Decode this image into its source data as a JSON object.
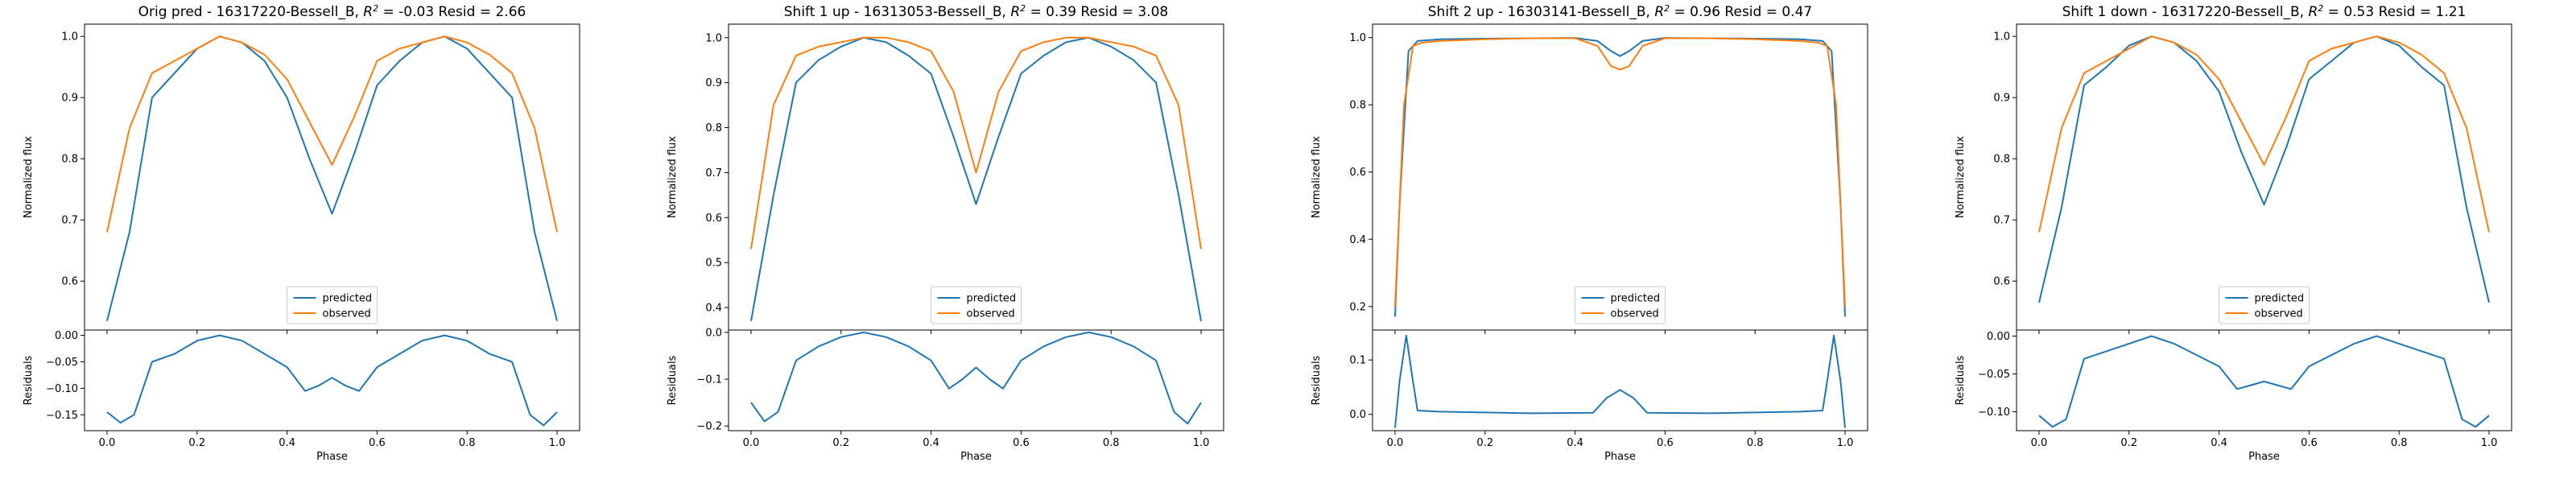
{
  "colors": {
    "predicted": "#1f77b4",
    "observed": "#ff7f0e",
    "axes": "#000000",
    "background": "#ffffff"
  },
  "labels": {
    "top_ylabel": "Normalized flux",
    "bottom_ylabel": "Residuals",
    "xlabel": "Phase"
  },
  "legend_position": "lower center",
  "chart_data": [
    {
      "type": "line",
      "title": "Orig pred - 16317220-Bessell_B, R² = -0.03 Resid = 2.66",
      "title_parts": {
        "pre": "Orig pred - 16317220-Bessell_B, ",
        "r": "R",
        "sup": "2",
        "post": " = -0.03 Resid = 2.66"
      },
      "xlabel": "Phase",
      "xlim": [
        -0.05,
        1.05
      ],
      "xticks": [
        0.0,
        0.2,
        0.4,
        0.6,
        0.8,
        1.0
      ],
      "xtick_labels": [
        "0.0",
        "0.2",
        "0.4",
        "0.6",
        "0.8",
        "1.0"
      ],
      "flux": {
        "ylabel": "Normalized flux",
        "ylim": [
          0.52,
          1.02
        ],
        "yticks": [
          0.6,
          0.7,
          0.8,
          0.9,
          1.0
        ],
        "ytick_labels": [
          "0.6",
          "0.7",
          "0.8",
          "0.9",
          "1.0"
        ],
        "series": [
          {
            "name": "predicted",
            "color": "#1f77b4",
            "x": [
              0.0,
              0.05,
              0.1,
              0.15,
              0.2,
              0.25,
              0.3,
              0.35,
              0.4,
              0.45,
              0.5,
              0.55,
              0.6,
              0.65,
              0.7,
              0.75,
              0.8,
              0.85,
              0.9,
              0.95,
              1.0
            ],
            "y": [
              0.535,
              0.68,
              0.9,
              0.94,
              0.98,
              1.0,
              0.99,
              0.96,
              0.9,
              0.8,
              0.71,
              0.81,
              0.92,
              0.96,
              0.99,
              1.0,
              0.98,
              0.94,
              0.9,
              0.68,
              0.535
            ]
          },
          {
            "name": "observed",
            "color": "#ff7f0e",
            "x": [
              0.0,
              0.05,
              0.1,
              0.15,
              0.2,
              0.25,
              0.3,
              0.35,
              0.4,
              0.45,
              0.5,
              0.55,
              0.6,
              0.65,
              0.7,
              0.75,
              0.8,
              0.85,
              0.9,
              0.95,
              1.0
            ],
            "y": [
              0.68,
              0.85,
              0.94,
              0.96,
              0.98,
              1.0,
              0.99,
              0.97,
              0.93,
              0.86,
              0.79,
              0.87,
              0.96,
              0.98,
              0.99,
              1.0,
              0.99,
              0.97,
              0.94,
              0.85,
              0.68
            ]
          }
        ],
        "legend": [
          "predicted",
          "observed"
        ]
      },
      "residuals": {
        "ylabel": "Residuals",
        "ylim": [
          -0.18,
          0.01
        ],
        "yticks": [
          0.0,
          -0.05,
          -0.1,
          -0.15
        ],
        "ytick_labels": [
          "0.00",
          "−0.05",
          "−0.10",
          "−0.15"
        ],
        "series": [
          {
            "name": "residual",
            "color": "#1f77b4",
            "x": [
              0.0,
              0.03,
              0.06,
              0.1,
              0.15,
              0.2,
              0.25,
              0.3,
              0.35,
              0.4,
              0.44,
              0.47,
              0.5,
              0.53,
              0.56,
              0.6,
              0.65,
              0.7,
              0.75,
              0.8,
              0.85,
              0.9,
              0.94,
              0.97,
              1.0
            ],
            "y": [
              -0.145,
              -0.165,
              -0.15,
              -0.05,
              -0.035,
              -0.01,
              0.0,
              -0.01,
              -0.035,
              -0.06,
              -0.105,
              -0.095,
              -0.08,
              -0.095,
              -0.105,
              -0.06,
              -0.035,
              -0.01,
              0.0,
              -0.01,
              -0.035,
              -0.05,
              -0.15,
              -0.17,
              -0.145
            ]
          }
        ]
      }
    },
    {
      "type": "line",
      "title": "Shift 1 up - 16313053-Bessell_B, R² = 0.39 Resid = 3.08",
      "title_parts": {
        "pre": "Shift 1 up - 16313053-Bessell_B, ",
        "r": "R",
        "sup": "2",
        "post": " = 0.39 Resid = 3.08"
      },
      "xlabel": "Phase",
      "xlim": [
        -0.05,
        1.05
      ],
      "xticks": [
        0.0,
        0.2,
        0.4,
        0.6,
        0.8,
        1.0
      ],
      "xtick_labels": [
        "0.0",
        "0.2",
        "0.4",
        "0.6",
        "0.8",
        "1.0"
      ],
      "flux": {
        "ylabel": "Normalized flux",
        "ylim": [
          0.35,
          1.03
        ],
        "yticks": [
          0.4,
          0.5,
          0.6,
          0.7,
          0.8,
          0.9,
          1.0
        ],
        "ytick_labels": [
          "0.4",
          "0.5",
          "0.6",
          "0.7",
          "0.8",
          "0.9",
          "1.0"
        ],
        "series": [
          {
            "name": "predicted",
            "color": "#1f77b4",
            "x": [
              0.0,
              0.05,
              0.1,
              0.15,
              0.2,
              0.25,
              0.3,
              0.35,
              0.4,
              0.45,
              0.5,
              0.55,
              0.6,
              0.65,
              0.7,
              0.75,
              0.8,
              0.85,
              0.9,
              0.95,
              1.0
            ],
            "y": [
              0.37,
              0.65,
              0.9,
              0.95,
              0.98,
              1.0,
              0.99,
              0.96,
              0.92,
              0.78,
              0.63,
              0.78,
              0.92,
              0.96,
              0.99,
              1.0,
              0.98,
              0.95,
              0.9,
              0.65,
              0.37
            ]
          },
          {
            "name": "observed",
            "color": "#ff7f0e",
            "x": [
              0.0,
              0.05,
              0.1,
              0.15,
              0.2,
              0.25,
              0.3,
              0.35,
              0.4,
              0.45,
              0.5,
              0.55,
              0.6,
              0.65,
              0.7,
              0.75,
              0.8,
              0.85,
              0.9,
              0.95,
              1.0
            ],
            "y": [
              0.53,
              0.85,
              0.96,
              0.98,
              0.99,
              1.0,
              1.0,
              0.99,
              0.97,
              0.88,
              0.7,
              0.88,
              0.97,
              0.99,
              1.0,
              1.0,
              0.99,
              0.98,
              0.96,
              0.85,
              0.53
            ]
          }
        ],
        "legend": [
          "predicted",
          "observed"
        ]
      },
      "residuals": {
        "ylabel": "Residuals",
        "ylim": [
          -0.21,
          0.005
        ],
        "yticks": [
          0.0,
          -0.1,
          -0.2
        ],
        "ytick_labels": [
          "0.0",
          "−0.1",
          "−0.2"
        ],
        "series": [
          {
            "name": "residual",
            "color": "#1f77b4",
            "x": [
              0.0,
              0.03,
              0.06,
              0.1,
              0.15,
              0.2,
              0.25,
              0.3,
              0.35,
              0.4,
              0.44,
              0.47,
              0.5,
              0.53,
              0.56,
              0.6,
              0.65,
              0.7,
              0.75,
              0.8,
              0.85,
              0.9,
              0.94,
              0.97,
              1.0
            ],
            "y": [
              -0.15,
              -0.19,
              -0.17,
              -0.06,
              -0.03,
              -0.01,
              0.0,
              -0.01,
              -0.03,
              -0.06,
              -0.12,
              -0.1,
              -0.075,
              -0.1,
              -0.12,
              -0.06,
              -0.03,
              -0.01,
              0.0,
              -0.01,
              -0.03,
              -0.06,
              -0.17,
              -0.195,
              -0.15
            ]
          }
        ]
      }
    },
    {
      "type": "line",
      "title": "Shift 2 up - 16303141-Bessell_B, R² = 0.96 Resid = 0.47",
      "title_parts": {
        "pre": "Shift 2 up - 16303141-Bessell_B, ",
        "r": "R",
        "sup": "2",
        "post": " = 0.96 Resid = 0.47"
      },
      "xlabel": "Phase",
      "xlim": [
        -0.05,
        1.05
      ],
      "xticks": [
        0.0,
        0.2,
        0.4,
        0.6,
        0.8,
        1.0
      ],
      "xtick_labels": [
        "0.0",
        "0.2",
        "0.4",
        "0.6",
        "0.8",
        "1.0"
      ],
      "flux": {
        "ylabel": "Normalized flux",
        "ylim": [
          0.13,
          1.04
        ],
        "yticks": [
          0.2,
          0.4,
          0.6,
          0.8,
          1.0
        ],
        "ytick_labels": [
          "0.2",
          "0.4",
          "0.6",
          "0.8",
          "1.0"
        ],
        "series": [
          {
            "name": "predicted",
            "color": "#1f77b4",
            "x": [
              0.0,
              0.01,
              0.03,
              0.05,
              0.1,
              0.2,
              0.3,
              0.4,
              0.45,
              0.48,
              0.5,
              0.52,
              0.55,
              0.6,
              0.7,
              0.8,
              0.9,
              0.95,
              0.97,
              0.99,
              1.0
            ],
            "y": [
              0.17,
              0.5,
              0.96,
              0.99,
              0.995,
              0.997,
              0.998,
              0.999,
              0.99,
              0.96,
              0.945,
              0.96,
              0.99,
              0.999,
              0.998,
              0.997,
              0.995,
              0.99,
              0.96,
              0.5,
              0.17
            ]
          },
          {
            "name": "observed",
            "color": "#ff7f0e",
            "x": [
              0.0,
              0.02,
              0.04,
              0.06,
              0.1,
              0.2,
              0.3,
              0.4,
              0.45,
              0.48,
              0.5,
              0.52,
              0.55,
              0.6,
              0.7,
              0.8,
              0.9,
              0.94,
              0.96,
              0.98,
              1.0
            ],
            "y": [
              0.2,
              0.8,
              0.975,
              0.985,
              0.99,
              0.995,
              0.998,
              0.998,
              0.975,
              0.915,
              0.905,
              0.915,
              0.975,
              0.998,
              0.998,
              0.995,
              0.99,
              0.985,
              0.975,
              0.8,
              0.2
            ]
          }
        ],
        "legend": [
          "predicted",
          "observed"
        ]
      },
      "residuals": {
        "ylabel": "Residuals",
        "ylim": [
          -0.03,
          0.155
        ],
        "yticks": [
          0.0,
          0.1
        ],
        "ytick_labels": [
          "0.0",
          "0.1"
        ],
        "series": [
          {
            "name": "residual",
            "color": "#1f77b4",
            "x": [
              0.0,
              0.01,
              0.025,
              0.04,
              0.05,
              0.1,
              0.3,
              0.44,
              0.47,
              0.5,
              0.53,
              0.56,
              0.7,
              0.9,
              0.95,
              0.96,
              0.975,
              0.99,
              1.0
            ],
            "y": [
              -0.025,
              0.06,
              0.145,
              0.06,
              0.007,
              0.005,
              0.002,
              0.003,
              0.03,
              0.045,
              0.03,
              0.003,
              0.002,
              0.005,
              0.007,
              0.06,
              0.145,
              0.06,
              -0.025
            ]
          }
        ]
      }
    },
    {
      "type": "line",
      "title": "Shift 1 down - 16317220-Bessell_B, R² = 0.53 Resid = 1.21",
      "title_parts": {
        "pre": "Shift 1 down - 16317220-Bessell_B, ",
        "r": "R",
        "sup": "2",
        "post": " = 0.53 Resid = 1.21"
      },
      "xlabel": "Phase",
      "xlim": [
        -0.05,
        1.05
      ],
      "xticks": [
        0.0,
        0.2,
        0.4,
        0.6,
        0.8,
        1.0
      ],
      "xtick_labels": [
        "0.0",
        "0.2",
        "0.4",
        "0.6",
        "0.8",
        "1.0"
      ],
      "flux": {
        "ylabel": "Normalized flux",
        "ylim": [
          0.52,
          1.02
        ],
        "yticks": [
          0.6,
          0.7,
          0.8,
          0.9,
          1.0
        ],
        "ytick_labels": [
          "0.6",
          "0.7",
          "0.8",
          "0.9",
          "1.0"
        ],
        "series": [
          {
            "name": "predicted",
            "color": "#1f77b4",
            "x": [
              0.0,
              0.05,
              0.1,
              0.15,
              0.2,
              0.25,
              0.3,
              0.35,
              0.4,
              0.45,
              0.5,
              0.55,
              0.6,
              0.65,
              0.7,
              0.75,
              0.8,
              0.85,
              0.9,
              0.95,
              1.0
            ],
            "y": [
              0.565,
              0.72,
              0.92,
              0.95,
              0.985,
              1.0,
              0.99,
              0.96,
              0.91,
              0.81,
              0.725,
              0.82,
              0.93,
              0.96,
              0.99,
              1.0,
              0.985,
              0.95,
              0.92,
              0.72,
              0.565
            ]
          },
          {
            "name": "observed",
            "color": "#ff7f0e",
            "x": [
              0.0,
              0.05,
              0.1,
              0.15,
              0.2,
              0.25,
              0.3,
              0.35,
              0.4,
              0.45,
              0.5,
              0.55,
              0.6,
              0.65,
              0.7,
              0.75,
              0.8,
              0.85,
              0.9,
              0.95,
              1.0
            ],
            "y": [
              0.68,
              0.85,
              0.94,
              0.96,
              0.98,
              1.0,
              0.99,
              0.97,
              0.93,
              0.86,
              0.79,
              0.87,
              0.96,
              0.98,
              0.99,
              1.0,
              0.99,
              0.97,
              0.94,
              0.85,
              0.68
            ]
          }
        ],
        "legend": [
          "predicted",
          "observed"
        ]
      },
      "residuals": {
        "ylabel": "Residuals",
        "ylim": [
          -0.125,
          0.008
        ],
        "yticks": [
          0.0,
          -0.05,
          -0.1
        ],
        "ytick_labels": [
          "0.00",
          "−0.05",
          "−0.10"
        ],
        "series": [
          {
            "name": "residual",
            "color": "#1f77b4",
            "x": [
              0.0,
              0.03,
              0.06,
              0.1,
              0.15,
              0.2,
              0.25,
              0.3,
              0.35,
              0.4,
              0.44,
              0.47,
              0.5,
              0.53,
              0.56,
              0.6,
              0.65,
              0.7,
              0.75,
              0.8,
              0.85,
              0.9,
              0.94,
              0.97,
              1.0
            ],
            "y": [
              -0.105,
              -0.12,
              -0.11,
              -0.03,
              -0.02,
              -0.01,
              0.0,
              -0.01,
              -0.025,
              -0.04,
              -0.07,
              -0.065,
              -0.06,
              -0.065,
              -0.07,
              -0.04,
              -0.025,
              -0.01,
              0.0,
              -0.01,
              -0.02,
              -0.03,
              -0.11,
              -0.12,
              -0.105
            ]
          }
        ]
      }
    }
  ]
}
